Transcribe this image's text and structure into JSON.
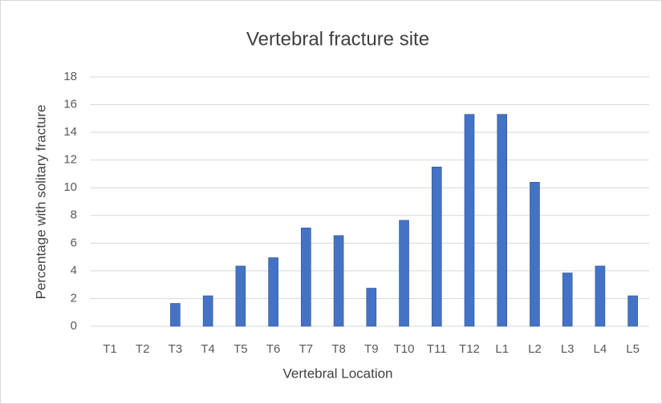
{
  "chart_data": {
    "type": "bar",
    "title": "Vertebral fracture site",
    "x_label": "Vertebral Location",
    "y_label": "Percentage with solitary fracture",
    "categories": [
      "T1",
      "T2",
      "T3",
      "T4",
      "T5",
      "T6",
      "T7",
      "T8",
      "T9",
      "T10",
      "T11",
      "T12",
      "L1",
      "L2",
      "L3",
      "L4",
      "L5"
    ],
    "values": [
      0,
      0,
      1.65,
      2.2,
      4.35,
      4.95,
      7.1,
      6.55,
      2.75,
      7.65,
      11.5,
      15.3,
      15.3,
      10.4,
      3.85,
      4.35,
      2.2
    ],
    "color": "#4472c4",
    "ylim": [
      0,
      18
    ],
    "yticks": [
      0,
      2,
      4,
      6,
      8,
      10,
      12,
      14,
      16,
      18
    ],
    "grid": true
  }
}
